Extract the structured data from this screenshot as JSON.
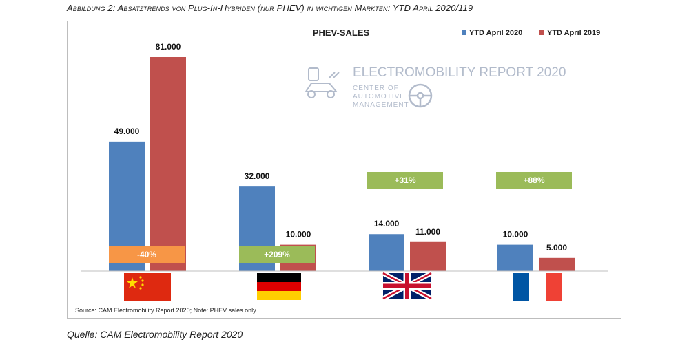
{
  "caption": "Abbildung 2: Absatztrends von Plug-In-Hybriden (nur PHEV) in wichtigen Märkten: YTD April 2020/119",
  "source_below": "Quelle: CAM Electromobility Report 2020",
  "colors": {
    "series_2020": "#4f81bd",
    "series_2019": "#c0504d",
    "increase": "#9bbb59",
    "decrease": "#f79646"
  },
  "watermark": {
    "title": "ELECTROMOBILITY REPORT 2020",
    "line1": "CENTER OF",
    "line2": "AUTOMOTIVE",
    "line3": "MANAGEMENT"
  },
  "chart_data": {
    "type": "bar",
    "title": "PHEV-SALES",
    "categories": [
      "China",
      "Germany",
      "United Kingdom",
      "France"
    ],
    "series": [
      {
        "name": "YTD April 2020",
        "values": [
          49000,
          32000,
          14000,
          10000
        ],
        "labels": [
          "49.000",
          "32.000",
          "14.000",
          "10.000"
        ]
      },
      {
        "name": "YTD April 2019",
        "values": [
          81000,
          10000,
          11000,
          5000
        ],
        "labels": [
          "81.000",
          "10.000",
          "11.000",
          "5.000"
        ]
      }
    ],
    "changes": [
      "-40%",
      "+209%",
      "+31%",
      "+88%"
    ],
    "ylim": [
      0,
      81000
    ],
    "note": "Source: CAM Electromobility Report 2020; Note: PHEV sales only"
  }
}
